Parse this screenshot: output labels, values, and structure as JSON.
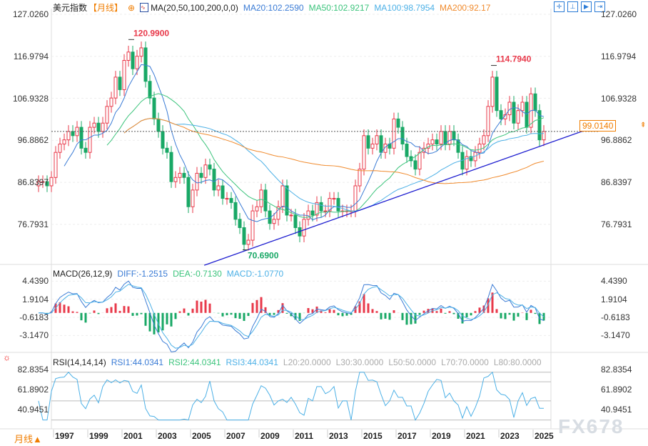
{
  "header": {
    "symbol": "美元指数",
    "period": "【月线】",
    "ma_label": "MA(20,50,100,200,0,0)",
    "ma20": "MA20:102.2590",
    "ma50": "MA50:102.9217",
    "ma100": "MA100:98.7954",
    "ma200": "MA200:92.17"
  },
  "macd_header": {
    "label": "MACD(26,12,9)",
    "diff": "DIFF:-1.2515",
    "dea": "DEA:-0.7130",
    "macd": "MACD:-1.0770"
  },
  "rsi_header": {
    "label": "RSI(14,14,14)",
    "rsi1": "RSI1:44.0341",
    "rsi2": "RSI2:44.0341",
    "rsi3": "RSI3:44.0341",
    "l20": "L20:20.0000",
    "l30": "L30:30.0000",
    "l50": "L50:50.0000",
    "l70": "L70:70.0000",
    "l80": "L80:80.0000"
  },
  "footer": {
    "period_button": "月线▲"
  },
  "watermark": "FX678",
  "colors": {
    "up": "#e8394a",
    "down": "#19a866",
    "ma20": "#3a7bd5",
    "ma50": "#3cc47c",
    "ma100": "#4cb0e6",
    "ma200": "#f08a2c",
    "trendline": "#1f1fd0"
  },
  "chart_data": [
    {
      "type": "candlestick",
      "title": "美元指数",
      "period": "monthly",
      "x_ticks": [
        "1997",
        "1999",
        "2001",
        "2003",
        "2005",
        "2007",
        "2009",
        "2011",
        "2013",
        "2015",
        "2017",
        "2019",
        "2021",
        "2023",
        "2025"
      ],
      "y_ticks": [
        "127.0260",
        "116.9794",
        "106.9328",
        "96.8862",
        "86.8397",
        "76.7931"
      ],
      "ylim": [
        66,
        127.026
      ],
      "quarter_start": "1996-Q1",
      "quarterly_close": [
        87,
        87,
        86,
        88,
        94,
        96,
        97,
        99,
        98,
        100,
        95,
        94,
        100,
        101,
        99,
        101,
        105,
        107,
        112,
        109,
        116,
        118,
        114,
        117,
        119,
        111,
        107,
        102,
        99,
        95,
        94,
        87,
        88,
        89,
        88,
        81,
        85,
        89,
        88,
        91,
        90,
        85,
        86,
        83,
        83,
        82,
        78,
        76,
        72,
        73,
        80,
        81,
        85,
        80,
        77,
        78,
        81,
        86,
        79,
        79,
        76,
        74,
        78,
        80,
        79,
        82,
        80,
        80,
        83,
        83,
        80,
        80,
        80,
        80,
        86,
        90,
        98,
        95,
        96,
        98,
        94,
        96,
        95,
        102,
        100,
        96,
        93,
        92,
        90,
        94,
        95,
        96,
        97,
        96,
        99,
        96,
        99,
        97,
        94,
        90,
        93,
        92,
        94,
        96,
        98,
        105,
        112,
        104,
        102,
        103,
        106,
        101,
        104,
        106,
        100,
        108,
        104,
        97,
        99
      ],
      "annotations": [
        {
          "text": "120.9900",
          "x": "2001-07",
          "y": 120.99
        },
        {
          "text": "70.6900",
          "x": "2008-03",
          "y": 70.69
        },
        {
          "text": "114.7940",
          "x": "2022-09",
          "y": 114.794
        }
      ],
      "current_price": "99.0140",
      "trendline": [
        {
          "x": 2005.8,
          "y": 67.0
        },
        {
          "x": 2028.8,
          "y": 100.4
        }
      ]
    },
    {
      "type": "macd",
      "y_ticks": [
        "4.4390",
        "1.9104",
        "-0.6183",
        "-3.1470"
      ]
    },
    {
      "type": "rsi",
      "y_ticks": [
        "82.8354",
        "61.8902",
        "40.9451"
      ]
    }
  ]
}
